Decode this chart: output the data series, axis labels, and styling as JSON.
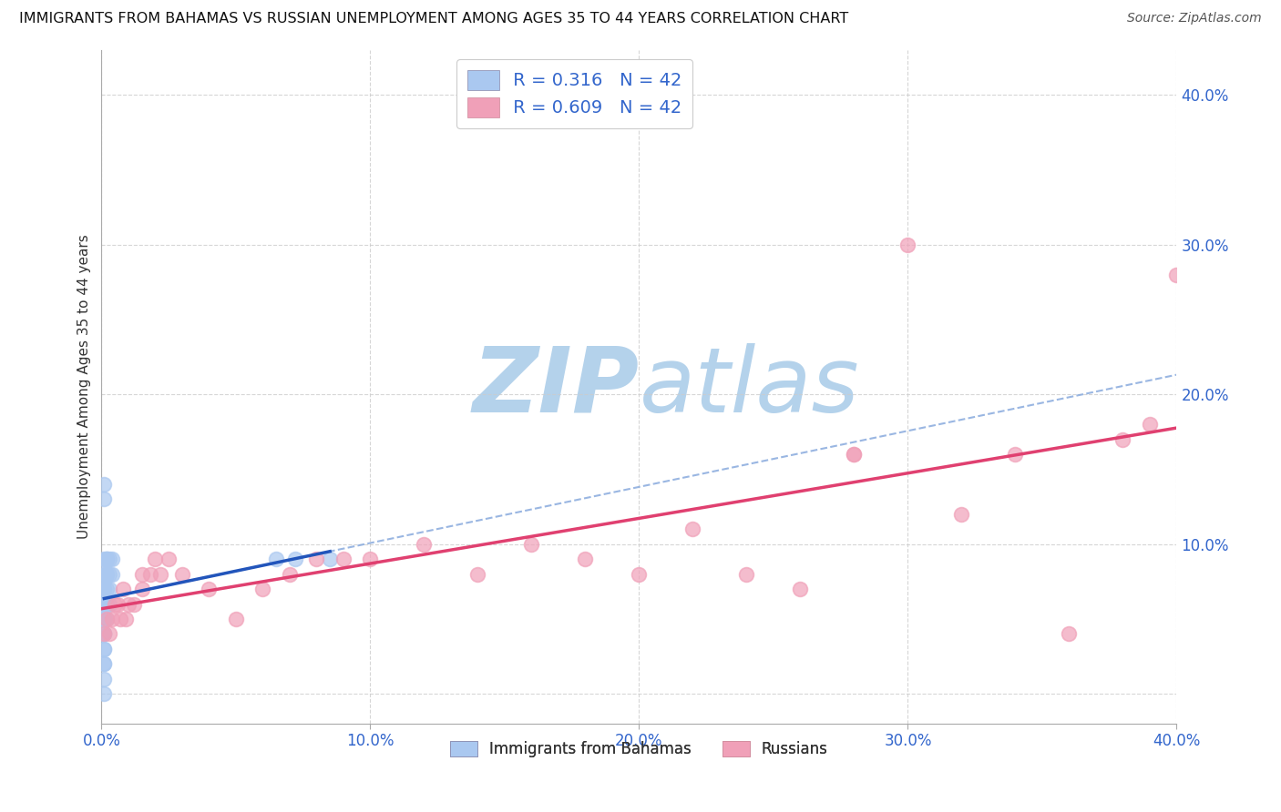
{
  "title": "IMMIGRANTS FROM BAHAMAS VS RUSSIAN UNEMPLOYMENT AMONG AGES 35 TO 44 YEARS CORRELATION CHART",
  "source": "Source: ZipAtlas.com",
  "ylabel": "Unemployment Among Ages 35 to 44 years",
  "xlim": [
    0.0,
    0.4
  ],
  "ylim": [
    -0.02,
    0.43
  ],
  "xticks": [
    0.0,
    0.1,
    0.2,
    0.3,
    0.4
  ],
  "yticks": [
    0.0,
    0.1,
    0.2,
    0.3,
    0.4
  ],
  "xtick_labels": [
    "0.0%",
    "10.0%",
    "20.0%",
    "30.0%",
    "40.0%"
  ],
  "ytick_labels": [
    "",
    "10.0%",
    "20.0%",
    "30.0%",
    "40.0%"
  ],
  "background_color": "#ffffff",
  "grid_color": "#cccccc",
  "watermark": "ZIPatlas",
  "watermark_color_r": 180,
  "watermark_color_g": 210,
  "watermark_color_b": 235,
  "blue_scatter_color": "#aac8f0",
  "blue_scatter_edge": "#aac8f0",
  "pink_scatter_color": "#f0a0b8",
  "pink_scatter_edge": "#f0a0b8",
  "blue_trend_solid_color": "#2255bb",
  "blue_trend_dashed_color": "#88aadd",
  "pink_trend_color": "#e04070",
  "tick_color": "#3366cc",
  "legend_R1": "R = 0.316",
  "legend_N1": "N = 42",
  "legend_R2": "R = 0.609",
  "legend_N2": "N = 42",
  "legend_label1": "Immigrants from Bahamas",
  "legend_label2": "Russians",
  "bahamas_x": [
    0.001,
    0.001,
    0.001,
    0.001,
    0.001,
    0.001,
    0.001,
    0.001,
    0.001,
    0.001,
    0.002,
    0.002,
    0.002,
    0.002,
    0.002,
    0.002,
    0.002,
    0.003,
    0.003,
    0.003,
    0.003,
    0.004,
    0.004,
    0.001,
    0.001,
    0.001,
    0.001,
    0.001,
    0.001,
    0.001,
    0.001,
    0.001,
    0.001,
    0.001,
    0.065,
    0.072,
    0.085,
    0.001,
    0.001,
    0.002,
    0.001,
    0.001
  ],
  "bahamas_y": [
    0.085,
    0.075,
    0.09,
    0.065,
    0.07,
    0.05,
    0.06,
    0.04,
    0.13,
    0.02,
    0.08,
    0.09,
    0.07,
    0.06,
    0.08,
    0.05,
    0.09,
    0.08,
    0.09,
    0.06,
    0.07,
    0.08,
    0.09,
    0.04,
    0.05,
    0.06,
    0.03,
    0.04,
    0.05,
    0.03,
    0.14,
    0.08,
    0.06,
    0.01,
    0.09,
    0.09,
    0.09,
    0.05,
    0.07,
    0.09,
    0.02,
    0.0
  ],
  "russians_x": [
    0.001,
    0.002,
    0.003,
    0.004,
    0.005,
    0.006,
    0.007,
    0.008,
    0.009,
    0.01,
    0.012,
    0.015,
    0.015,
    0.018,
    0.02,
    0.022,
    0.025,
    0.03,
    0.04,
    0.05,
    0.06,
    0.07,
    0.08,
    0.09,
    0.1,
    0.12,
    0.14,
    0.16,
    0.18,
    0.2,
    0.22,
    0.24,
    0.26,
    0.28,
    0.3,
    0.32,
    0.34,
    0.36,
    0.38,
    0.39,
    0.4,
    0.28
  ],
  "russians_y": [
    0.04,
    0.05,
    0.04,
    0.05,
    0.06,
    0.06,
    0.05,
    0.07,
    0.05,
    0.06,
    0.06,
    0.07,
    0.08,
    0.08,
    0.09,
    0.08,
    0.09,
    0.08,
    0.07,
    0.05,
    0.07,
    0.08,
    0.09,
    0.09,
    0.09,
    0.1,
    0.08,
    0.1,
    0.09,
    0.08,
    0.11,
    0.08,
    0.07,
    0.16,
    0.3,
    0.12,
    0.16,
    0.04,
    0.17,
    0.18,
    0.28,
    0.16
  ]
}
